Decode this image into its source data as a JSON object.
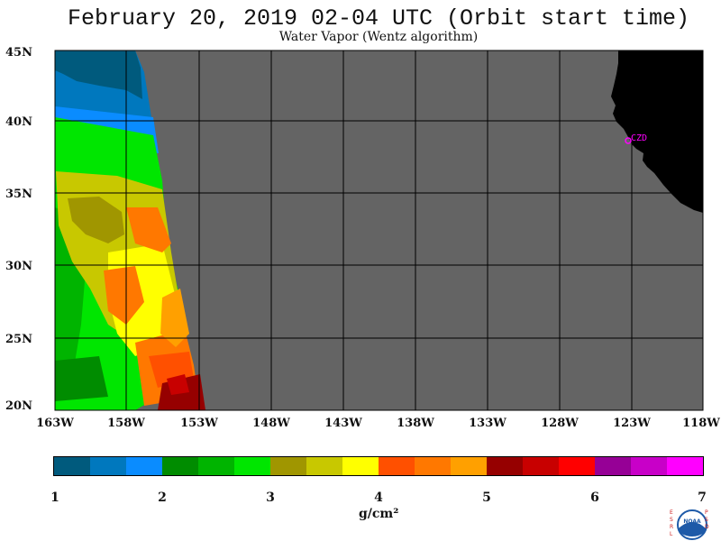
{
  "header": {
    "title": "February 20, 2019  02-04 UTC  (Orbit start time)",
    "subtitle": "Water Vapor (Wentz algorithm)"
  },
  "map": {
    "lat_labels": [
      "45N",
      "40N",
      "35N",
      "30N",
      "25N",
      "20N"
    ],
    "lon_labels": [
      "163W",
      "158W",
      "153W",
      "148W",
      "143W",
      "138W",
      "133W",
      "128W",
      "123W",
      "118W"
    ],
    "station_label": "CZD",
    "colors": {
      "no_data": "#646464",
      "land": "#000000",
      "station": "#ff00ff"
    }
  },
  "colorbar": {
    "ticks": [
      "1",
      "2",
      "3",
      "4",
      "5",
      "6",
      "7"
    ],
    "unit": "g/cm²",
    "colors": [
      "#005a7d",
      "#0078be",
      "#0a8cff",
      "#008c00",
      "#00b400",
      "#00e600",
      "#a09600",
      "#c8c800",
      "#ffff00",
      "#ff5000",
      "#ff7800",
      "#ffa000",
      "#960000",
      "#c80000",
      "#ff0000",
      "#960096",
      "#c800c8",
      "#ff00ff"
    ]
  },
  "logo": {
    "left_letters": "ESRL",
    "right_letters": "PSD",
    "text": "NOAA"
  }
}
